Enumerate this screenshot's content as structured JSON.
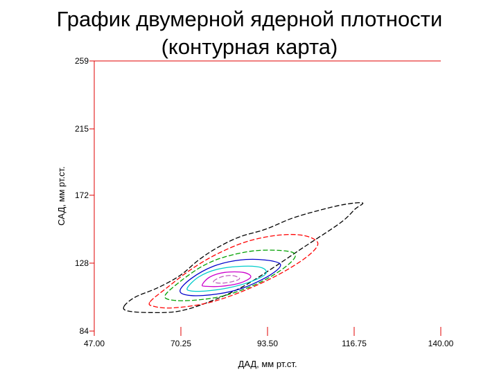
{
  "slide": {
    "title_line1": "График двумерной ядерной плотности",
    "title_line2": "(контурная карта)"
  },
  "chart_data": {
    "type": "contour",
    "title": "График двумерной ядерной плотности (контурная карта)",
    "xlabel": "ДАД, мм рт.ст.",
    "ylabel": "САД, мм рт.ст.",
    "xlim": [
      47.0,
      140.0
    ],
    "ylim": [
      84,
      259
    ],
    "x_ticks": [
      "47.00",
      "70.25",
      "93.50",
      "116.75",
      "140.00"
    ],
    "x_tick_values": [
      47.0,
      70.25,
      93.5,
      116.75,
      140.0
    ],
    "y_ticks": [
      "84",
      "128",
      "172",
      "215",
      "259"
    ],
    "y_tick_values": [
      84,
      128,
      172,
      215,
      259
    ],
    "grid": false,
    "axis_color": "#e00000",
    "contours": [
      {
        "level": 1,
        "color": "#000000",
        "style": "dashed",
        "points": [
          [
            55,
            100
          ],
          [
            58,
            106
          ],
          [
            64,
            112
          ],
          [
            70,
            120
          ],
          [
            75,
            130
          ],
          [
            80,
            138
          ],
          [
            86,
            145
          ],
          [
            93,
            150
          ],
          [
            100,
            157
          ],
          [
            107,
            162
          ],
          [
            114,
            166
          ],
          [
            119,
            167
          ],
          [
            117,
            163
          ],
          [
            113,
            154
          ],
          [
            103,
            138
          ],
          [
            95,
            125
          ],
          [
            87,
            113
          ],
          [
            79,
            104
          ],
          [
            70,
            97
          ],
          [
            62,
            96
          ],
          [
            56,
            97
          ]
        ]
      },
      {
        "level": 2,
        "color": "#ff0000",
        "style": "dashed",
        "points": [
          [
            62,
            103
          ],
          [
            67,
            113
          ],
          [
            73,
            124
          ],
          [
            80,
            134
          ],
          [
            88,
            142
          ],
          [
            96,
            146
          ],
          [
            103,
            146
          ],
          [
            107,
            141
          ],
          [
            104,
            132
          ],
          [
            96,
            120
          ],
          [
            86,
            109
          ],
          [
            77,
            102
          ],
          [
            68,
            99
          ],
          [
            63,
            100
          ]
        ]
      },
      {
        "level": 3,
        "color": "#00a000",
        "style": "dashed",
        "points": [
          [
            66,
            107
          ],
          [
            70,
            116
          ],
          [
            76,
            126
          ],
          [
            82,
            132
          ],
          [
            90,
            136
          ],
          [
            98,
            136
          ],
          [
            101,
            133
          ],
          [
            98,
            125
          ],
          [
            91,
            115
          ],
          [
            82,
            107
          ],
          [
            74,
            104
          ],
          [
            68,
            104
          ]
        ]
      },
      {
        "level": 4,
        "color": "#0000cc",
        "style": "solid",
        "points": [
          [
            70,
            110
          ],
          [
            73,
            118
          ],
          [
            79,
            126
          ],
          [
            86,
            130
          ],
          [
            93,
            130
          ],
          [
            97,
            127
          ],
          [
            94,
            120
          ],
          [
            87,
            112
          ],
          [
            80,
            108
          ],
          [
            73,
            107
          ]
        ]
      },
      {
        "level": 5,
        "color": "#00cccc",
        "style": "solid",
        "points": [
          [
            72,
            112
          ],
          [
            75,
            119
          ],
          [
            80,
            124
          ],
          [
            87,
            126
          ],
          [
            92,
            125
          ],
          [
            93,
            121
          ],
          [
            89,
            116
          ],
          [
            83,
            112
          ],
          [
            77,
            110
          ],
          [
            73,
            110
          ]
        ]
      },
      {
        "level": 6,
        "color": "#cc00cc",
        "style": "solid",
        "points": [
          [
            76,
            114
          ],
          [
            78,
            119
          ],
          [
            82,
            122
          ],
          [
            87,
            122
          ],
          [
            89,
            119
          ],
          [
            86,
            115
          ],
          [
            81,
            113
          ],
          [
            77,
            113
          ]
        ]
      },
      {
        "level": 7,
        "color": "#c060c0",
        "style": "dashed",
        "points": [
          [
            79,
            116
          ],
          [
            81,
            119
          ],
          [
            84,
            120
          ],
          [
            86,
            118
          ],
          [
            84,
            116
          ],
          [
            81,
            115
          ]
        ]
      }
    ]
  }
}
